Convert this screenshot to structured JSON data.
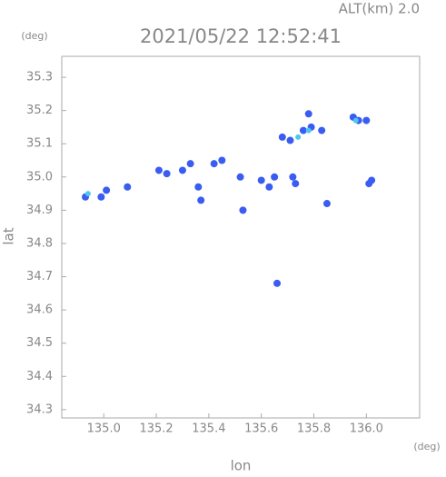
{
  "chart_data": {
    "type": "scatter",
    "title": "2021/05/22 12:52:41",
    "subtitle": "ALT(km) 2.0",
    "x_label": "lon",
    "y_label": "lat",
    "x_unit": "(deg)",
    "y_unit": "(deg)",
    "xlim": [
      134.84,
      136.203
    ],
    "ylim": [
      34.275,
      35.363
    ],
    "xticks": [
      {
        "value": 135.0,
        "label": "135.0"
      },
      135.2,
      135.4,
      135.6,
      135.8,
      {
        "value": 136.0,
        "label": "136.0"
      }
    ],
    "yticks": [
      34.3,
      34.4,
      34.5,
      34.6,
      34.7,
      34.8,
      34.9,
      {
        "value": 35.0,
        "label": "35.0"
      },
      35.1,
      35.2,
      35.3
    ],
    "series": [
      {
        "color": "#3a5cf0",
        "x": [
          134.93,
          134.99,
          135.01,
          135.09,
          135.21,
          135.24,
          135.33,
          135.3,
          135.37,
          135.36,
          135.42,
          135.45,
          135.52,
          135.53,
          135.6,
          135.63,
          135.65,
          135.72,
          135.73,
          135.66,
          135.68,
          135.71,
          135.76,
          135.79,
          135.83,
          135.78,
          135.85,
          135.95,
          135.97,
          136.0,
          136.02,
          136.01
        ],
        "y": [
          34.94,
          34.94,
          34.96,
          34.97,
          35.02,
          35.01,
          35.04,
          35.02,
          34.93,
          34.97,
          35.04,
          35.05,
          35.0,
          34.9,
          34.99,
          34.97,
          35.0,
          35.0,
          34.98,
          34.68,
          35.12,
          35.11,
          35.14,
          35.15,
          35.14,
          35.19,
          34.92,
          35.18,
          35.17,
          35.17,
          34.99,
          34.98
        ]
      },
      {
        "color": "#4cc8f0",
        "x": [
          134.94,
          135.74,
          135.78,
          135.96
        ],
        "y": [
          34.95,
          35.12,
          35.14,
          35.17
        ]
      }
    ]
  }
}
